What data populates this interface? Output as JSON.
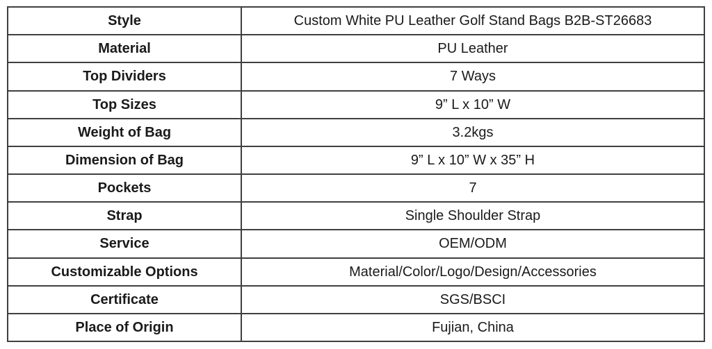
{
  "table": {
    "colors": {
      "border": "#3f3f3f",
      "text": "#1a1a1a",
      "background": "#ffffff"
    },
    "rows": [
      {
        "label": "Style",
        "value": "Custom White PU Leather Golf Stand Bags B2B-ST26683"
      },
      {
        "label": "Material",
        "value": "PU Leather"
      },
      {
        "label": "Top Dividers",
        "value": "7 Ways"
      },
      {
        "label": "Top Sizes",
        "value": "9”  L x 10”  W"
      },
      {
        "label": "Weight of Bag",
        "value": "3.2kgs"
      },
      {
        "label": "Dimension of Bag",
        "value": "9”  L x 10”  W x 35”  H"
      },
      {
        "label": "Pockets",
        "value": "7"
      },
      {
        "label": "Strap",
        "value": "Single Shoulder Strap"
      },
      {
        "label": "Service",
        "value": "OEM/ODM"
      },
      {
        "label": "Customizable Options",
        "value": "Material/Color/Logo/Design/Accessories"
      },
      {
        "label": "Certificate",
        "value": "SGS/BSCI"
      },
      {
        "label": "Place of Origin",
        "value": "Fujian, China"
      }
    ]
  }
}
